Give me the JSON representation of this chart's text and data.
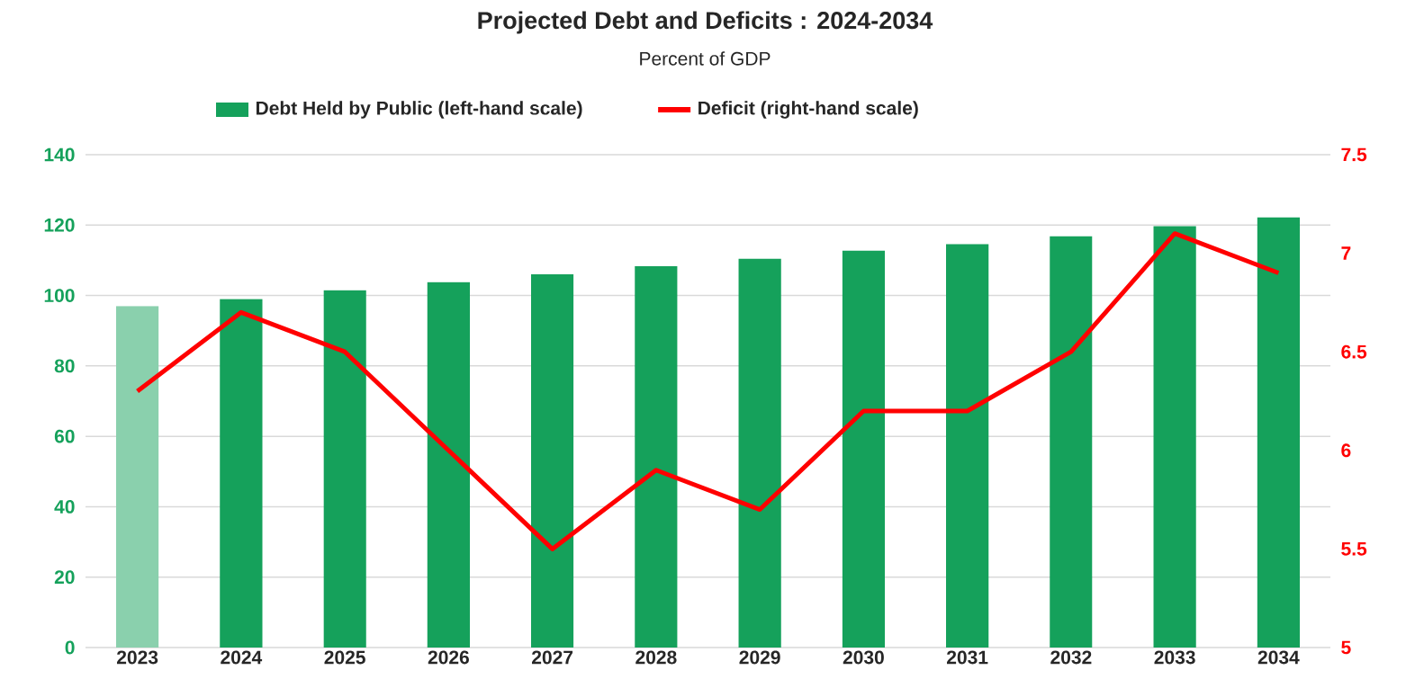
{
  "chart_data": {
    "type": "bar",
    "title": "Projected Debt and Deficits : 2024-2034",
    "subtitle": "Percent of GDP",
    "categories": [
      "2023",
      "2024",
      "2025",
      "2026",
      "2027",
      "2028",
      "2029",
      "2030",
      "2031",
      "2032",
      "2033",
      "2034"
    ],
    "series": [
      {
        "name": "Debt Held by Public (left-hand scale)",
        "color": "#15a15b",
        "colors": [
          "#8ad0ad",
          "#15a15b",
          "#15a15b",
          "#15a15b",
          "#15a15b",
          "#15a15b",
          "#15a15b",
          "#15a15b",
          "#15a15b",
          "#15a15b",
          "#15a15b",
          "#15a15b"
        ],
        "values": [
          97,
          99,
          101.5,
          103.8,
          106,
          108.3,
          110.4,
          112.7,
          114.6,
          116.8,
          119.7,
          122.2
        ]
      },
      {
        "name": "Deficit (right-hand scale)",
        "type": "line",
        "axis": "y2",
        "color": "#ff0000",
        "values": [
          6.3,
          6.7,
          6.5,
          6.0,
          5.5,
          5.9,
          5.7,
          6.2,
          6.2,
          6.5,
          7.1,
          6.9
        ]
      }
    ],
    "ylim": [
      0,
      140
    ],
    "yticks": [
      0,
      20,
      40,
      60,
      80,
      100,
      120,
      140
    ],
    "y2lim": [
      5,
      7.5
    ],
    "y2ticks": [
      5,
      5.5,
      6,
      6.5,
      7,
      7.5
    ],
    "grid": "y",
    "legend": "top"
  }
}
